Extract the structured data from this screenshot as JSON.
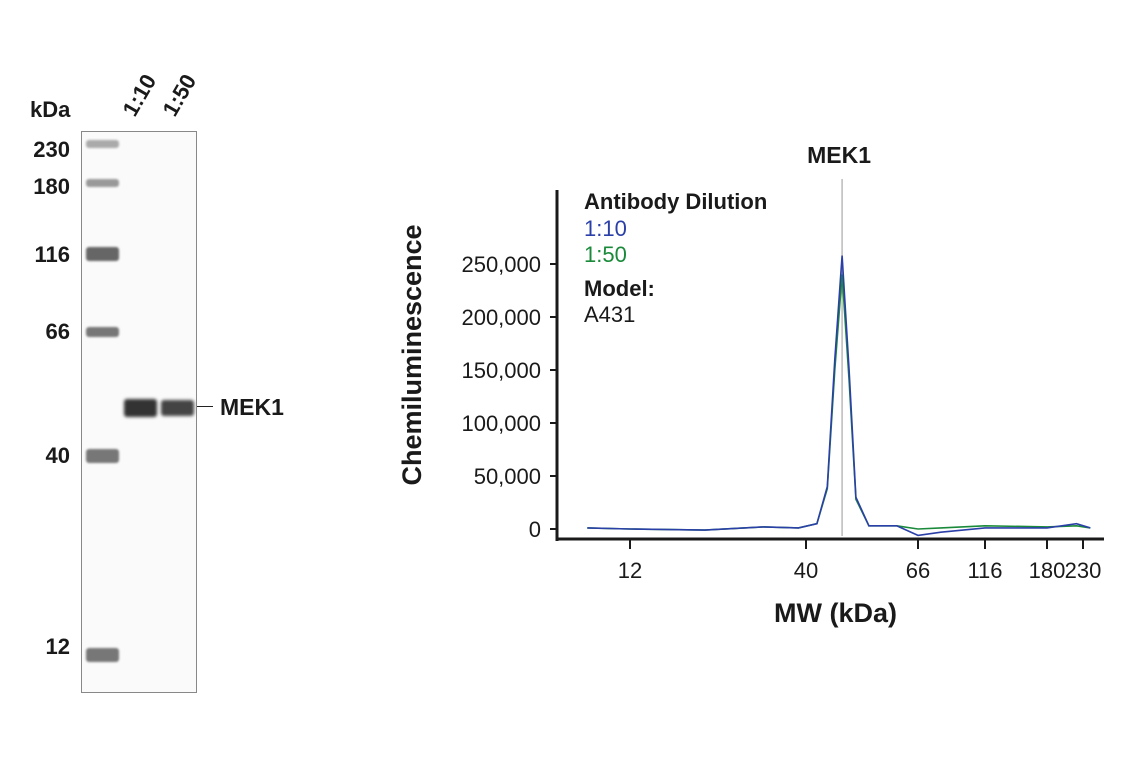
{
  "gel": {
    "unit_label": "kDa",
    "lanes": [
      "1:10",
      "1:50"
    ],
    "markers": [
      "230",
      "180",
      "116",
      "66",
      "40",
      "12"
    ],
    "band_label": "MEK1"
  },
  "chart_data": {
    "type": "line",
    "title": "MEK1",
    "xlabel": "MW (kDa)",
    "ylabel": "Chemiluminescence",
    "x_ticks": [
      12,
      40,
      66,
      116,
      180,
      230
    ],
    "y_ticks": [
      0,
      50000,
      100000,
      150000,
      200000,
      250000
    ],
    "y_tick_labels": [
      "0",
      "50,000",
      "100,000",
      "150,000",
      "200,000",
      "250,000"
    ],
    "ylim": [
      0,
      310000
    ],
    "marker_line_kDa": 47,
    "legend": {
      "title": "Antibody Dilution",
      "model_label": "Model:",
      "model": "A431"
    },
    "series": [
      {
        "name": "1:10",
        "color": "#2b3fa8",
        "x": [
          8,
          12,
          20,
          30,
          38,
          42,
          44,
          45.5,
          47,
          48.5,
          50,
          53,
          60,
          66,
          80,
          116,
          180,
          220,
          240
        ],
        "y": [
          1000,
          0,
          -1000,
          2000,
          1000,
          5000,
          40000,
          160000,
          258000,
          150000,
          30000,
          3000,
          3000,
          -6000,
          -3000,
          1000,
          1000,
          5000,
          1000
        ]
      },
      {
        "name": "1:50",
        "color": "#1a8a3a",
        "x": [
          8,
          12,
          20,
          30,
          38,
          42,
          44,
          45.5,
          47,
          48.5,
          50,
          53,
          60,
          66,
          80,
          116,
          180,
          220,
          240
        ],
        "y": [
          1000,
          0,
          -1000,
          2000,
          1000,
          5000,
          38000,
          150000,
          240000,
          140000,
          28000,
          3000,
          3000,
          0,
          1000,
          3000,
          2000,
          3000,
          1000
        ]
      }
    ]
  }
}
